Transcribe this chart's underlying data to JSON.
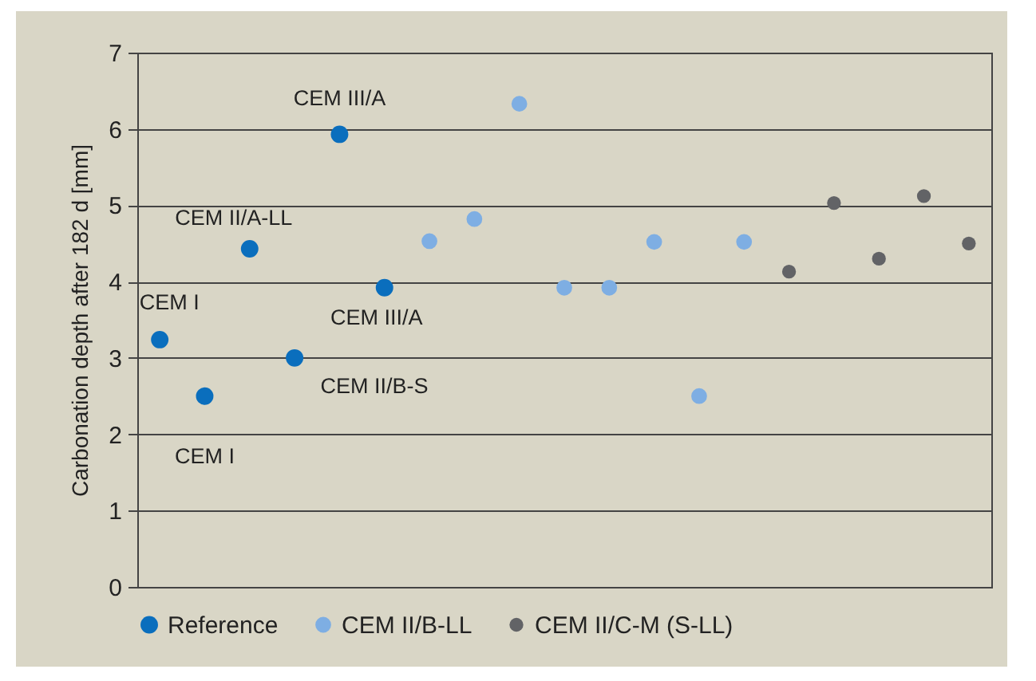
{
  "chart_data": {
    "type": "scatter",
    "ylabel": "Carbonation depth after 182 d [mm]",
    "categories": [
      null,
      null,
      null,
      null,
      null,
      null,
      null,
      null,
      null,
      null,
      null,
      null,
      null,
      null,
      null,
      null,
      null,
      null,
      null
    ],
    "series": [
      {
        "name": "Reference",
        "color": "#0a6ebd",
        "values": [
          3.24,
          2.5,
          4.43,
          3.0,
          5.93,
          3.92,
          null,
          null,
          null,
          null,
          null,
          null,
          null,
          null,
          null,
          null,
          null,
          null,
          null
        ]
      },
      {
        "name": "CEM II/B-LL",
        "color": "#7eaee3",
        "values": [
          null,
          null,
          null,
          null,
          null,
          null,
          4.53,
          4.82,
          6.33,
          3.92,
          3.92,
          4.52,
          2.5,
          4.52,
          null,
          null,
          null,
          null,
          null
        ]
      },
      {
        "name": "CEM II/C-M (S-LL)",
        "color": "#626366",
        "values": [
          null,
          null,
          null,
          null,
          null,
          null,
          null,
          null,
          null,
          null,
          null,
          null,
          null,
          null,
          4.13,
          5.03,
          4.3,
          5.12,
          4.5
        ]
      }
    ],
    "annotations": [
      "CEM I",
      "CEM I",
      "CEM II/A-LL",
      "CEM II/B-S",
      "CEM III/A",
      "CEM III/A"
    ],
    "ylim": [
      0,
      7
    ],
    "yticks": [
      0,
      1,
      2,
      3,
      4,
      5,
      6,
      7
    ],
    "grid": "y",
    "legend": "bottom",
    "marker": "circle"
  }
}
